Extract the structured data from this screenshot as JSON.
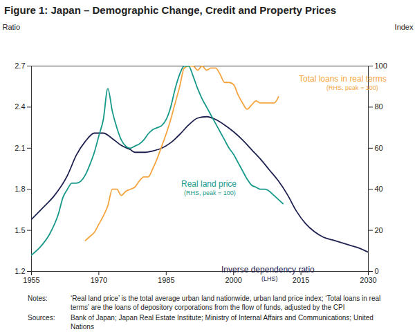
{
  "chart_data": {
    "type": "line",
    "title": "Figure 1: Japan – Demographic Change, Credit and Property Prices",
    "y_label": "Ratio",
    "y2_label": "Index",
    "xlim": [
      1955,
      2030
    ],
    "xticks": [
      1955,
      1970,
      1985,
      2000,
      2015,
      2030
    ],
    "ylim": [
      1.2,
      2.7
    ],
    "yticks": [
      1.2,
      1.5,
      1.8,
      2.1,
      2.4,
      2.7
    ],
    "y2lim": [
      0,
      100
    ],
    "y2ticks": [
      0,
      20,
      40,
      60,
      80,
      100
    ],
    "grid": false,
    "series": [
      {
        "name": "Total loans in real terms",
        "color": "#f5a540",
        "axis": "y2",
        "x": [
          1967,
          1968,
          1969,
          1970,
          1971,
          1972,
          1973,
          1974,
          1975,
          1976,
          1977,
          1978,
          1979,
          1980,
          1981,
          1982,
          1983,
          1984,
          1985,
          1986,
          1987,
          1988,
          1989,
          1990,
          1991,
          1992,
          1993,
          1994,
          1995,
          1996,
          1997,
          1998,
          1999,
          2000,
          2001,
          2002,
          2003,
          2004,
          2005,
          2006,
          2007,
          2008,
          2009,
          2010
        ],
        "values": [
          15,
          17,
          19,
          23,
          27,
          32,
          40,
          40,
          37,
          39,
          40,
          41,
          44,
          46,
          46,
          50,
          55,
          61,
          67,
          74,
          82,
          90,
          99,
          100,
          100,
          98,
          100,
          98,
          99,
          99,
          96,
          92,
          92,
          91,
          86,
          82,
          79,
          81,
          83,
          82,
          82,
          82,
          82,
          85
        ]
      },
      {
        "name": "Real land price",
        "color": "#17998a",
        "axis": "y2",
        "x": [
          1955,
          1957,
          1959,
          1961,
          1962,
          1963,
          1964,
          1965,
          1966,
          1967,
          1968,
          1969,
          1970,
          1971,
          1972,
          1973,
          1974,
          1975,
          1976,
          1977,
          1978,
          1979,
          1980,
          1981,
          1982,
          1983,
          1984,
          1985,
          1986,
          1987,
          1988,
          1989,
          1990,
          1991,
          1992,
          1993,
          1994,
          1995,
          1996,
          1997,
          1998,
          1999,
          2000,
          2001,
          2002,
          2003,
          2004,
          2005,
          2006,
          2007,
          2008,
          2009,
          2010,
          2011
        ],
        "values": [
          8,
          12,
          18,
          28,
          36,
          40,
          43,
          43,
          44,
          47,
          52,
          58,
          66,
          74,
          89,
          78,
          70,
          64,
          61,
          60,
          61,
          62,
          64,
          67,
          69,
          70,
          71,
          74,
          80,
          89,
          96,
          100,
          100,
          95,
          89,
          84,
          80,
          76,
          72,
          68,
          64,
          60,
          57,
          53,
          49,
          45,
          42,
          41,
          40,
          40,
          39,
          37,
          35,
          33
        ]
      },
      {
        "name": "Inverse dependency ratio",
        "color": "#1e2150",
        "axis": "y",
        "x": [
          1955,
          1958,
          1960,
          1963,
          1965,
          1967,
          1969,
          1971,
          1973,
          1975,
          1977,
          1978,
          1980,
          1982,
          1984,
          1986,
          1988,
          1990,
          1992,
          1994,
          1996,
          1998,
          2000,
          2002,
          2004,
          2006,
          2008,
          2010,
          2012,
          2014,
          2016,
          2018,
          2020,
          2022,
          2024,
          2026,
          2028,
          2030
        ],
        "values": [
          1.58,
          1.68,
          1.75,
          1.9,
          2.05,
          2.15,
          2.21,
          2.21,
          2.17,
          2.12,
          2.09,
          2.07,
          2.07,
          2.08,
          2.1,
          2.14,
          2.2,
          2.27,
          2.32,
          2.33,
          2.31,
          2.27,
          2.22,
          2.16,
          2.09,
          2.02,
          1.94,
          1.86,
          1.76,
          1.64,
          1.55,
          1.49,
          1.45,
          1.43,
          1.41,
          1.39,
          1.37,
          1.34
        ]
      }
    ],
    "annotations": [
      "(RHS, peak = 100)",
      "(RHS, peak = 100)",
      "(LHS)"
    ],
    "notes": {
      "label": "Notes:",
      "text": "‘Real land price’ is the total average urban land nationwide, urban land price index; ‘Total loans in real terms’ are the loans of depository corporations from the flow of funds, adjusted by the CPI"
    },
    "sources": {
      "label": "Sources:",
      "text": "Bank of Japan; Japan Real Estate Institute; Ministry of Internal Affairs and Communications; United Nations"
    }
  }
}
